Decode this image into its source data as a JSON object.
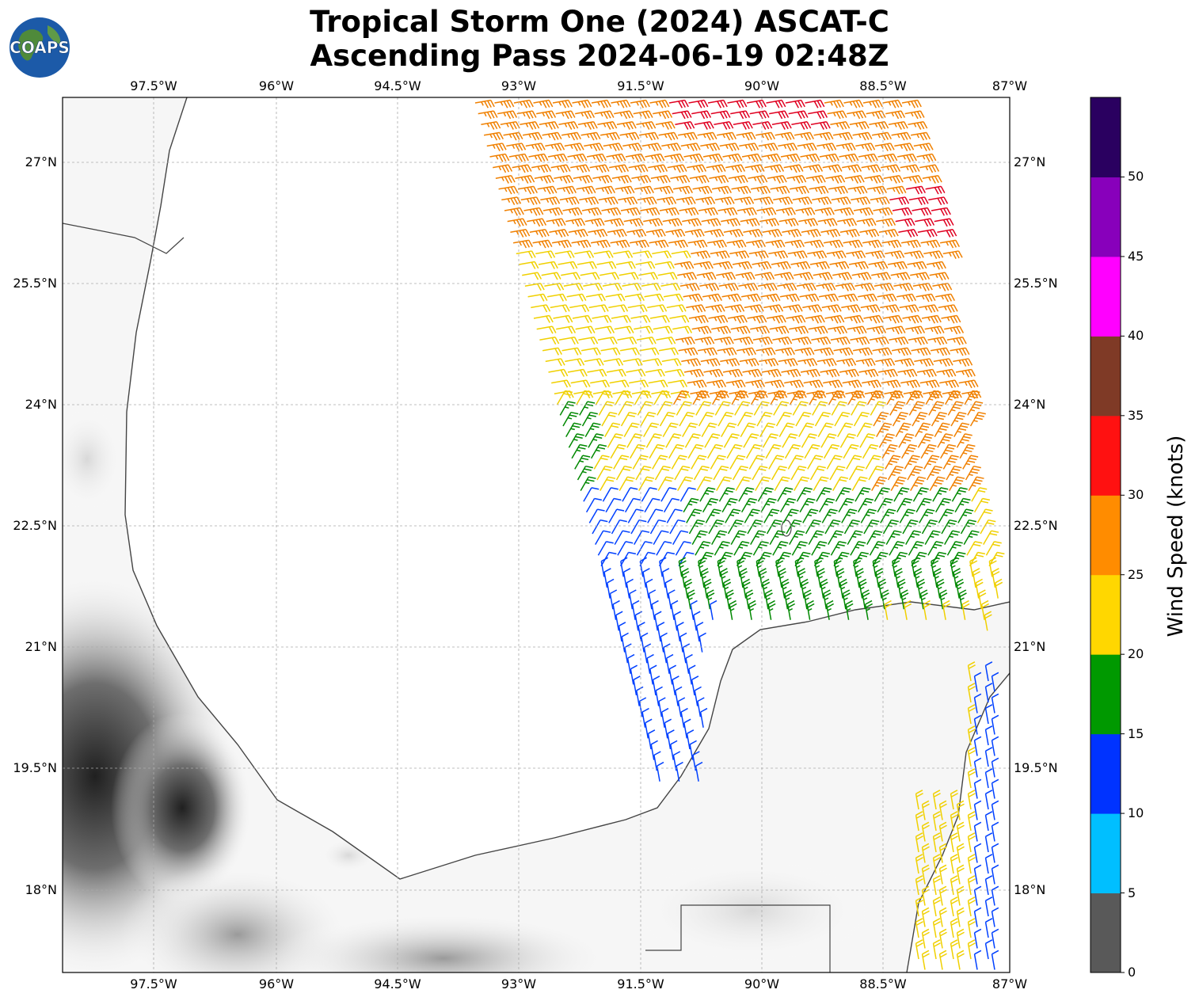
{
  "title": {
    "line1": "Tropical Storm One (2024) ASCAT-C",
    "line2": "Ascending Pass 2024-06-19 02:48Z"
  },
  "logo": {
    "text": "COAPS",
    "icon": "globe-logo"
  },
  "map": {
    "lon_labels": [
      "97.5°W",
      "96°W",
      "94.5°W",
      "93°W",
      "91.5°W",
      "90°W",
      "88.5°W",
      "87°W"
    ],
    "lat_labels": [
      "27°N",
      "25.5°N",
      "24°N",
      "22.5°N",
      "21°N",
      "19.5°N",
      "18°N"
    ],
    "background": "grayscale terrain elevation",
    "gridlines": true
  },
  "colorbar": {
    "title": "Wind Speed (knots)",
    "ticks": [
      "0",
      "5",
      "10",
      "15",
      "20",
      "25",
      "30",
      "35",
      "40",
      "45",
      "50"
    ],
    "colors": [
      "#595959",
      "#00bfff",
      "#0033ff",
      "#009900",
      "#ffd700",
      "#ff8c00",
      "#ff1111",
      "#7f3a26",
      "#ff00ff",
      "#8800bb",
      "#2a0060"
    ]
  },
  "wind_speed_colors": {
    "5-10": "#00bfff",
    "10-15": "#0040ff",
    "15-20": "#008800",
    "20-25": "#f0d000",
    "25-30": "#f08000",
    "30-35": "#e00020"
  }
}
